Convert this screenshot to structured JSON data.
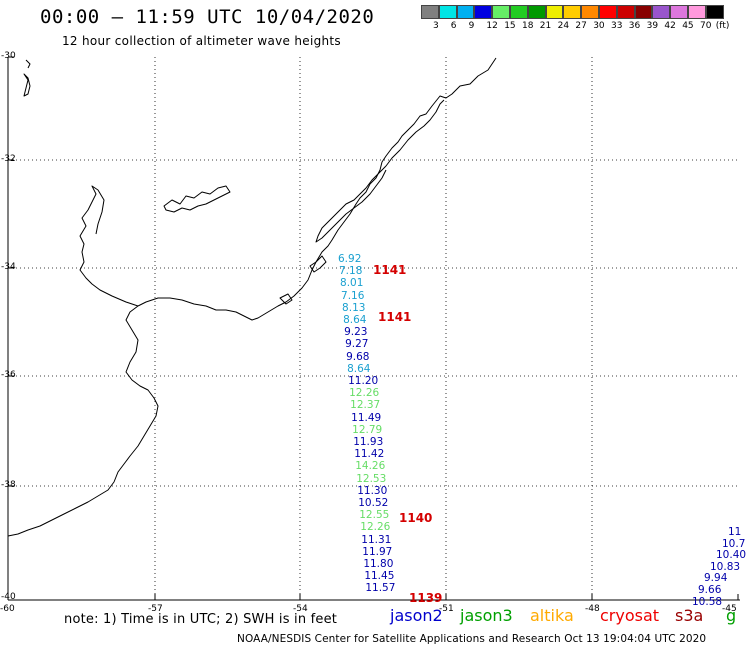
{
  "header": {
    "title": "00:00 – 11:59 UTC 10/04/2020",
    "subtitle": "12 hour collection of altimeter wave heights"
  },
  "scale": {
    "swatches": [
      "#808080",
      "#00e5e5",
      "#00b0f0",
      "#0000e0",
      "#66ee66",
      "#22cc22",
      "#009900",
      "#eeee00",
      "#ffcc00",
      "#ff8800",
      "#ff0000",
      "#cc0000",
      "#880000",
      "#9955cc",
      "#dd77dd",
      "#ff99dd",
      "#000000"
    ],
    "labels": [
      "3",
      "6",
      "9",
      "12",
      "15",
      "18",
      "21",
      "24",
      "27",
      "30",
      "33",
      "36",
      "39",
      "42",
      "45",
      "70",
      "(ft)"
    ]
  },
  "axes": {
    "lat_labels": [
      "-30",
      "-32",
      "-34",
      "-36",
      "-38",
      "-40"
    ],
    "lon_labels": [
      "-60",
      "-57",
      "-54",
      "-51",
      "-48",
      "-45"
    ]
  },
  "readings": [
    {
      "v": "6.92",
      "c": "#1aa0d0"
    },
    {
      "v": "7.18",
      "c": "#1aa0d0"
    },
    {
      "v": "8.01",
      "c": "#1aa0d0"
    },
    {
      "v": "7.16",
      "c": "#1aa0d0"
    },
    {
      "v": "8.13",
      "c": "#1aa0d0"
    },
    {
      "v": "8.64",
      "c": "#1aa0d0"
    },
    {
      "v": "9.23",
      "c": "#0000aa"
    },
    {
      "v": "9.27",
      "c": "#0000aa"
    },
    {
      "v": "9.68",
      "c": "#0000aa"
    },
    {
      "v": "8.64",
      "c": "#1aa0d0"
    },
    {
      "v": "11.20",
      "c": "#0000aa"
    },
    {
      "v": "12.26",
      "c": "#66dd66"
    },
    {
      "v": "12.37",
      "c": "#66dd66"
    },
    {
      "v": "11.49",
      "c": "#0000aa"
    },
    {
      "v": "12.79",
      "c": "#66dd66"
    },
    {
      "v": "11.93",
      "c": "#0000aa"
    },
    {
      "v": "11.42",
      "c": "#0000aa"
    },
    {
      "v": "14.26",
      "c": "#66dd66"
    },
    {
      "v": "12.53",
      "c": "#66dd66"
    },
    {
      "v": "11.30",
      "c": "#0000aa"
    },
    {
      "v": "10.52",
      "c": "#0000aa"
    },
    {
      "v": "12.55",
      "c": "#66dd66"
    },
    {
      "v": "12.26",
      "c": "#66dd66"
    },
    {
      "v": "11.31",
      "c": "#0000aa"
    },
    {
      "v": "11.97",
      "c": "#0000aa"
    },
    {
      "v": "11.80",
      "c": "#0000aa"
    },
    {
      "v": "11.45",
      "c": "#0000aa"
    },
    {
      "v": "11.57",
      "c": "#0000aa"
    }
  ],
  "right_readings": [
    {
      "v": "11",
      "c": "#0000aa"
    },
    {
      "v": "10.7",
      "c": "#0000aa"
    },
    {
      "v": "10.40",
      "c": "#0000aa"
    },
    {
      "v": "10.83",
      "c": "#0000aa"
    },
    {
      "v": "9.94",
      "c": "#0000aa"
    },
    {
      "v": "9.66",
      "c": "#0000aa"
    },
    {
      "v": "10.58",
      "c": "#0000aa"
    }
  ],
  "pass_times": [
    "1141",
    "1141",
    "1140",
    "1139"
  ],
  "footer": {
    "note": "note:  1) Time is in UTC; 2) SWH is in feet",
    "satellites": [
      {
        "name": "jason2",
        "color": "#0000cc"
      },
      {
        "name": "jason3",
        "color": "#00a000"
      },
      {
        "name": "altika",
        "color": "#ffaa00"
      },
      {
        "name": "cryosat",
        "color": "#ee0000"
      },
      {
        "name": "s3a",
        "color": "#990000"
      },
      {
        "name": "g",
        "color": "#00a000"
      }
    ],
    "credit": "NOAA/NESDIS Center for Satellite Applications and Research     Oct 13 19:04:04 UTC 2020"
  }
}
